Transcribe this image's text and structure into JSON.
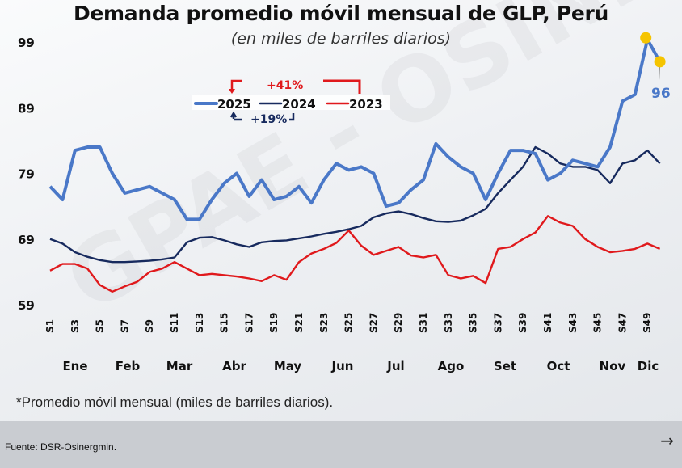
{
  "chart_data": {
    "type": "line",
    "title": "Demanda promedio móvil mensual de GLP, Perú",
    "subtitle": "(en miles de barriles diarios)",
    "ylim": [
      59,
      99
    ],
    "yticks": [
      99,
      89,
      79,
      69,
      59
    ],
    "xtick_labels": [
      "S1",
      "S3",
      "S5",
      "S7",
      "S9",
      "S11",
      "S13",
      "S15",
      "S17",
      "S19",
      "S21",
      "S23",
      "S25",
      "S27",
      "S29",
      "S31",
      "S33",
      "S35",
      "S37",
      "S39",
      "S41",
      "S43",
      "S45",
      "S47",
      "S49"
    ],
    "months": [
      "Ene",
      "Feb",
      "Mar",
      "Abr",
      "May",
      "Jun",
      "Jul",
      "Ago",
      "Set",
      "Oct",
      "Nov",
      "Dic"
    ],
    "grid": false,
    "legend_placement": "top-center",
    "series": [
      {
        "name": "2025",
        "color": "#4a78c8",
        "values": [
          77,
          75,
          82.5,
          83,
          83,
          79,
          76,
          76.5,
          77,
          76,
          75,
          72,
          72,
          75,
          77.5,
          79,
          75.5,
          78,
          75,
          75.5,
          77,
          74.5,
          78,
          80.5,
          79.5,
          80,
          79,
          74,
          74.5,
          76.5,
          78,
          83.5,
          81.5,
          80,
          79,
          75,
          79,
          82.5,
          82.5,
          82,
          78,
          79,
          81,
          80.5,
          80,
          83,
          90,
          91,
          99.4,
          96
        ]
      },
      {
        "name": "2024",
        "color": "#172a5e",
        "values": [
          69,
          68.3,
          67,
          66.3,
          65.8,
          65.5,
          65.5,
          65.6,
          65.7,
          65.9,
          66.2,
          68.5,
          69.2,
          69.3,
          68.8,
          68.2,
          67.8,
          68.5,
          68.7,
          68.8,
          69.1,
          69.4,
          69.8,
          70.1,
          70.5,
          71,
          72.3,
          72.9,
          73.2,
          72.8,
          72.2,
          71.7,
          71.6,
          71.8,
          72.6,
          73.6,
          76,
          78,
          80,
          83,
          82,
          80.5,
          80,
          80,
          79.5,
          77.5,
          80.5,
          81,
          82.5,
          80.5
        ]
      },
      {
        "name": "2023",
        "color": "#e0191c",
        "values": [
          64.2,
          65.2,
          65.2,
          64.5,
          62,
          61,
          61.8,
          62.5,
          64,
          64.5,
          65.5,
          64.5,
          63.5,
          63.7,
          63.5,
          63.3,
          63,
          62.6,
          63.5,
          62.8,
          65.5,
          66.8,
          67.5,
          68.4,
          70.3,
          68,
          66.6,
          67.2,
          67.8,
          66.5,
          66.2,
          66.6,
          63.5,
          63,
          63.4,
          62.3,
          67.5,
          67.8,
          69,
          70,
          72.5,
          71.5,
          71,
          69,
          67.8,
          67,
          67.2,
          67.5,
          68.3,
          67.5
        ]
      }
    ],
    "annotations": {
      "growth_2023": "+41%",
      "growth_2024": "+19%",
      "last_value": "96",
      "marker_color": "#f5c400"
    }
  },
  "footnote": "*Promedio móvil mensual (miles de barriles diarios).",
  "footer": {
    "source": "Fuente: DSR-Osinergmin.",
    "arrow": "→"
  },
  "watermark": "GPAE - OSINE"
}
